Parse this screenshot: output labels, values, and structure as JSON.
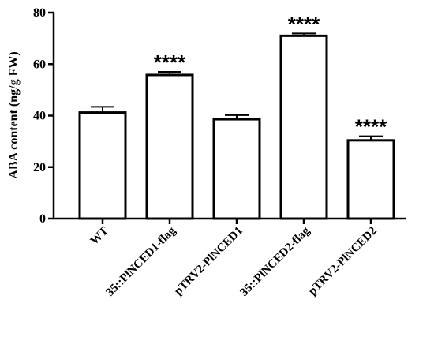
{
  "chart_data": {
    "type": "bar",
    "ylabel": "ABA content (ng/g FW)",
    "ylim": [
      0,
      80
    ],
    "yticks": [
      0,
      20,
      40,
      60,
      80
    ],
    "grid": false,
    "categories": [
      "WT",
      "35::PlNCED1-flag",
      "pTRV2-PlNCED1",
      "35::PlNCED2-flag",
      "pTRV2-PlNCED2"
    ],
    "values": [
      41.2,
      55.8,
      38.6,
      71.0,
      30.4
    ],
    "errors": [
      2.2,
      1.2,
      1.6,
      0.9,
      1.6
    ],
    "annotations": [
      "",
      "****",
      "",
      "****",
      "****"
    ],
    "colors": {
      "bar_fill": "#ffffff",
      "bar_stroke": "#000000",
      "axis": "#000000"
    }
  }
}
